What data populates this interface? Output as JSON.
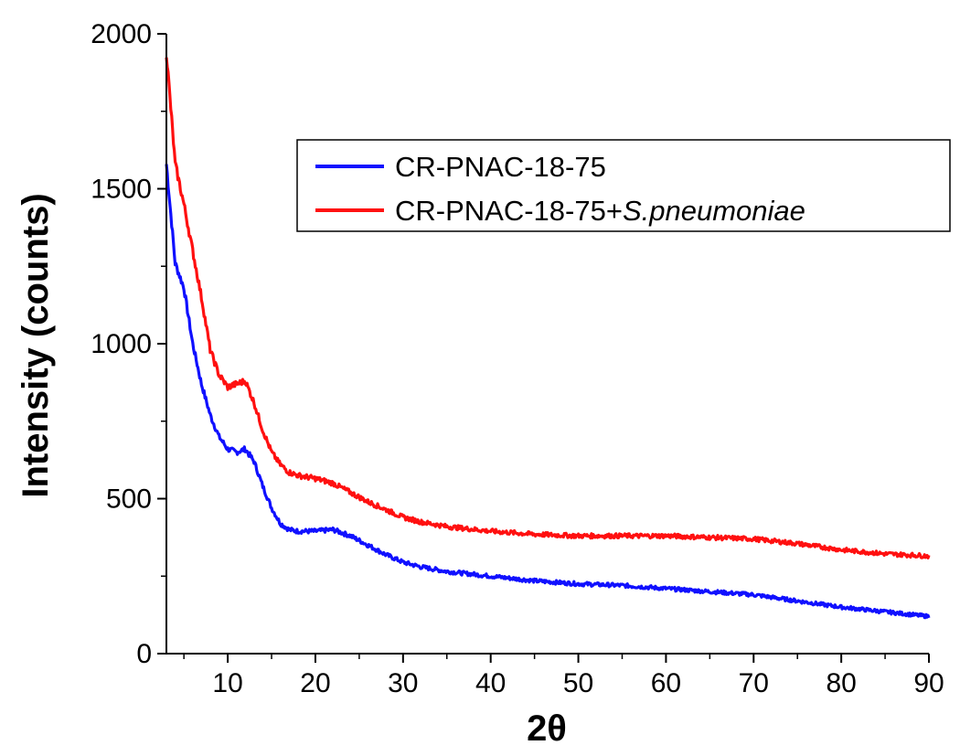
{
  "chart_data": {
    "type": "line",
    "title": "",
    "xlabel": "2θ",
    "ylabel": "Intensity (counts)",
    "xlim": [
      3,
      90
    ],
    "ylim": [
      0,
      2000
    ],
    "x_major_ticks": [
      10,
      20,
      30,
      40,
      50,
      60,
      70,
      80,
      90
    ],
    "y_major_ticks": [
      0,
      500,
      1000,
      1500,
      2000
    ],
    "grid": false,
    "legend_position": "top-right",
    "series": [
      {
        "name": "CR-PNAC-18-75",
        "color": "#1010ff",
        "x": [
          3,
          4,
          5,
          6,
          7,
          8,
          9,
          10,
          11,
          12,
          13,
          14,
          15,
          16,
          17,
          18,
          20,
          22,
          24,
          26,
          28,
          30,
          32,
          35,
          40,
          45,
          50,
          55,
          60,
          65,
          70,
          75,
          80,
          85,
          90
        ],
        "y": [
          1580,
          1260,
          1180,
          1000,
          870,
          770,
          700,
          660,
          650,
          660,
          620,
          540,
          470,
          420,
          400,
          395,
          395,
          400,
          380,
          350,
          320,
          295,
          280,
          265,
          250,
          235,
          225,
          220,
          210,
          200,
          190,
          170,
          150,
          135,
          120
        ]
      },
      {
        "name": "CR-PNAC-18-75+S.pneumoniae",
        "name_parts": [
          "CR-PNAC-18-75+",
          "S.pneumoniae"
        ],
        "color": "#ff1010",
        "x": [
          3,
          4,
          5,
          6,
          7,
          8,
          9,
          10,
          11,
          12,
          13,
          14,
          15,
          16,
          17,
          18,
          20,
          22,
          24,
          26,
          28,
          30,
          32,
          35,
          40,
          45,
          50,
          55,
          60,
          65,
          70,
          75,
          80,
          85,
          90
        ],
        "y": [
          1940,
          1580,
          1450,
          1300,
          1150,
          980,
          900,
          860,
          870,
          880,
          810,
          720,
          650,
          610,
          585,
          575,
          565,
          550,
          520,
          490,
          465,
          440,
          425,
          410,
          395,
          385,
          380,
          380,
          380,
          375,
          370,
          355,
          335,
          322,
          315
        ]
      }
    ]
  }
}
